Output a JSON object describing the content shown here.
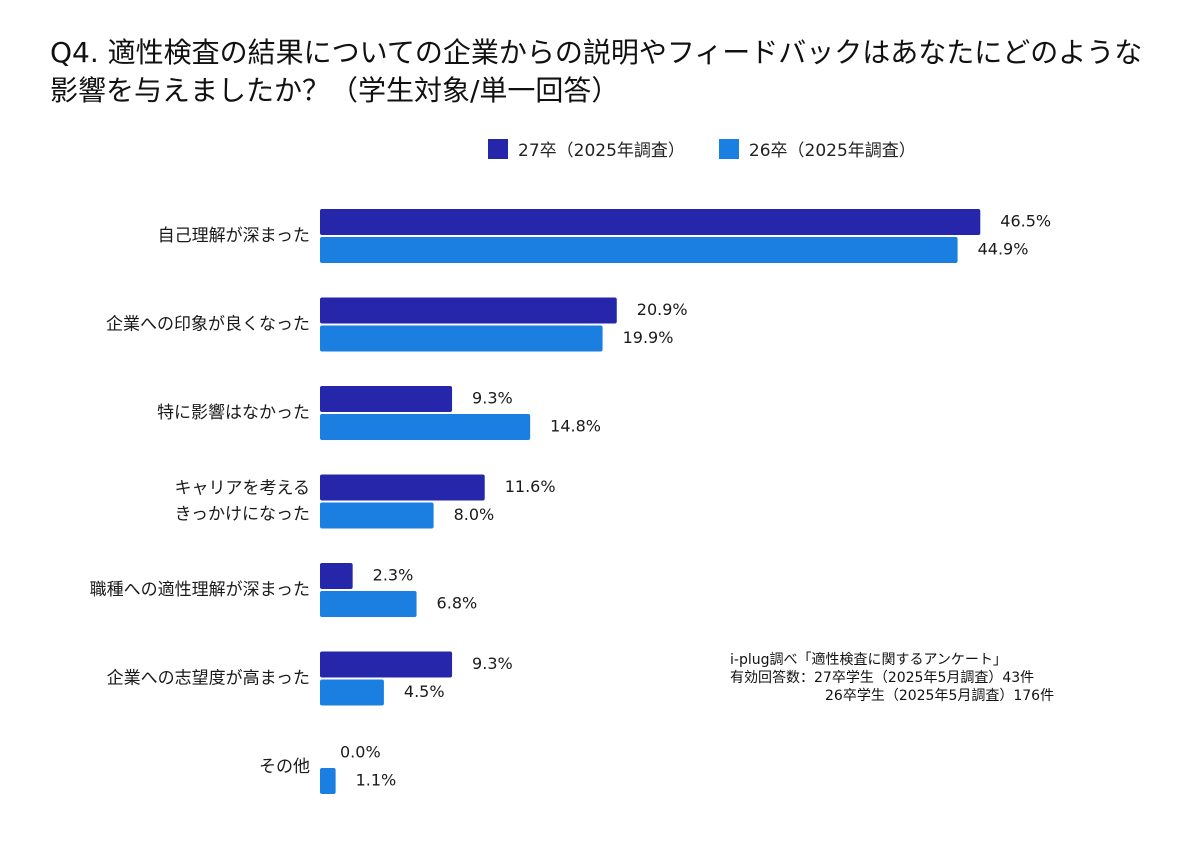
{
  "title_line1": "Q4. 適性検査の結果についての企業からの説明やフィードバックはあなたにどのような",
  "title_line2": "影響を与えましたか？（学生対象/単一回答）",
  "colors": {
    "series_27": "#2626ab",
    "series_26": "#1a7fe0"
  },
  "chart_data": {
    "type": "bar",
    "orientation": "horizontal",
    "title": "Q4. 適性検査の結果についての企業からの説明やフィードバックはあなたにどのような影響を与えましたか？（学生対象/単一回答）",
    "categories": [
      [
        "自己理解が深まった"
      ],
      [
        "企業への印象が良くなった"
      ],
      [
        "特に影響はなかった"
      ],
      [
        "キャリアを考える",
        "きっかけになった"
      ],
      [
        "職種への適性理解が深まった"
      ],
      [
        "企業への志望度が高まった"
      ],
      [
        "その他"
      ]
    ],
    "series": [
      {
        "name": "27卒（2025年調査）",
        "values": [
          46.5,
          20.9,
          9.3,
          11.6,
          2.3,
          9.3,
          0.0
        ],
        "labels": [
          "46.5%",
          "20.9%",
          "9.3%",
          "11.6%",
          "2.3%",
          "9.3%",
          "0.0%"
        ]
      },
      {
        "name": "26卒（2025年調査）",
        "values": [
          44.9,
          19.9,
          14.8,
          8.0,
          6.8,
          4.5,
          1.1
        ],
        "labels": [
          "44.9%",
          "19.9%",
          "14.8%",
          "8.0%",
          "6.8%",
          "4.5%",
          "1.1%"
        ]
      }
    ],
    "unit": "%",
    "xlim": [
      0,
      50
    ],
    "legend_position": "top",
    "grid": false
  },
  "note": {
    "line1": "i-plug調べ「適性検査に関するアンケート」",
    "line2": "有効回答数：27卒学生（2025年5月調査）43件",
    "line3": "26卒学生（2025年5月調査）176件"
  }
}
